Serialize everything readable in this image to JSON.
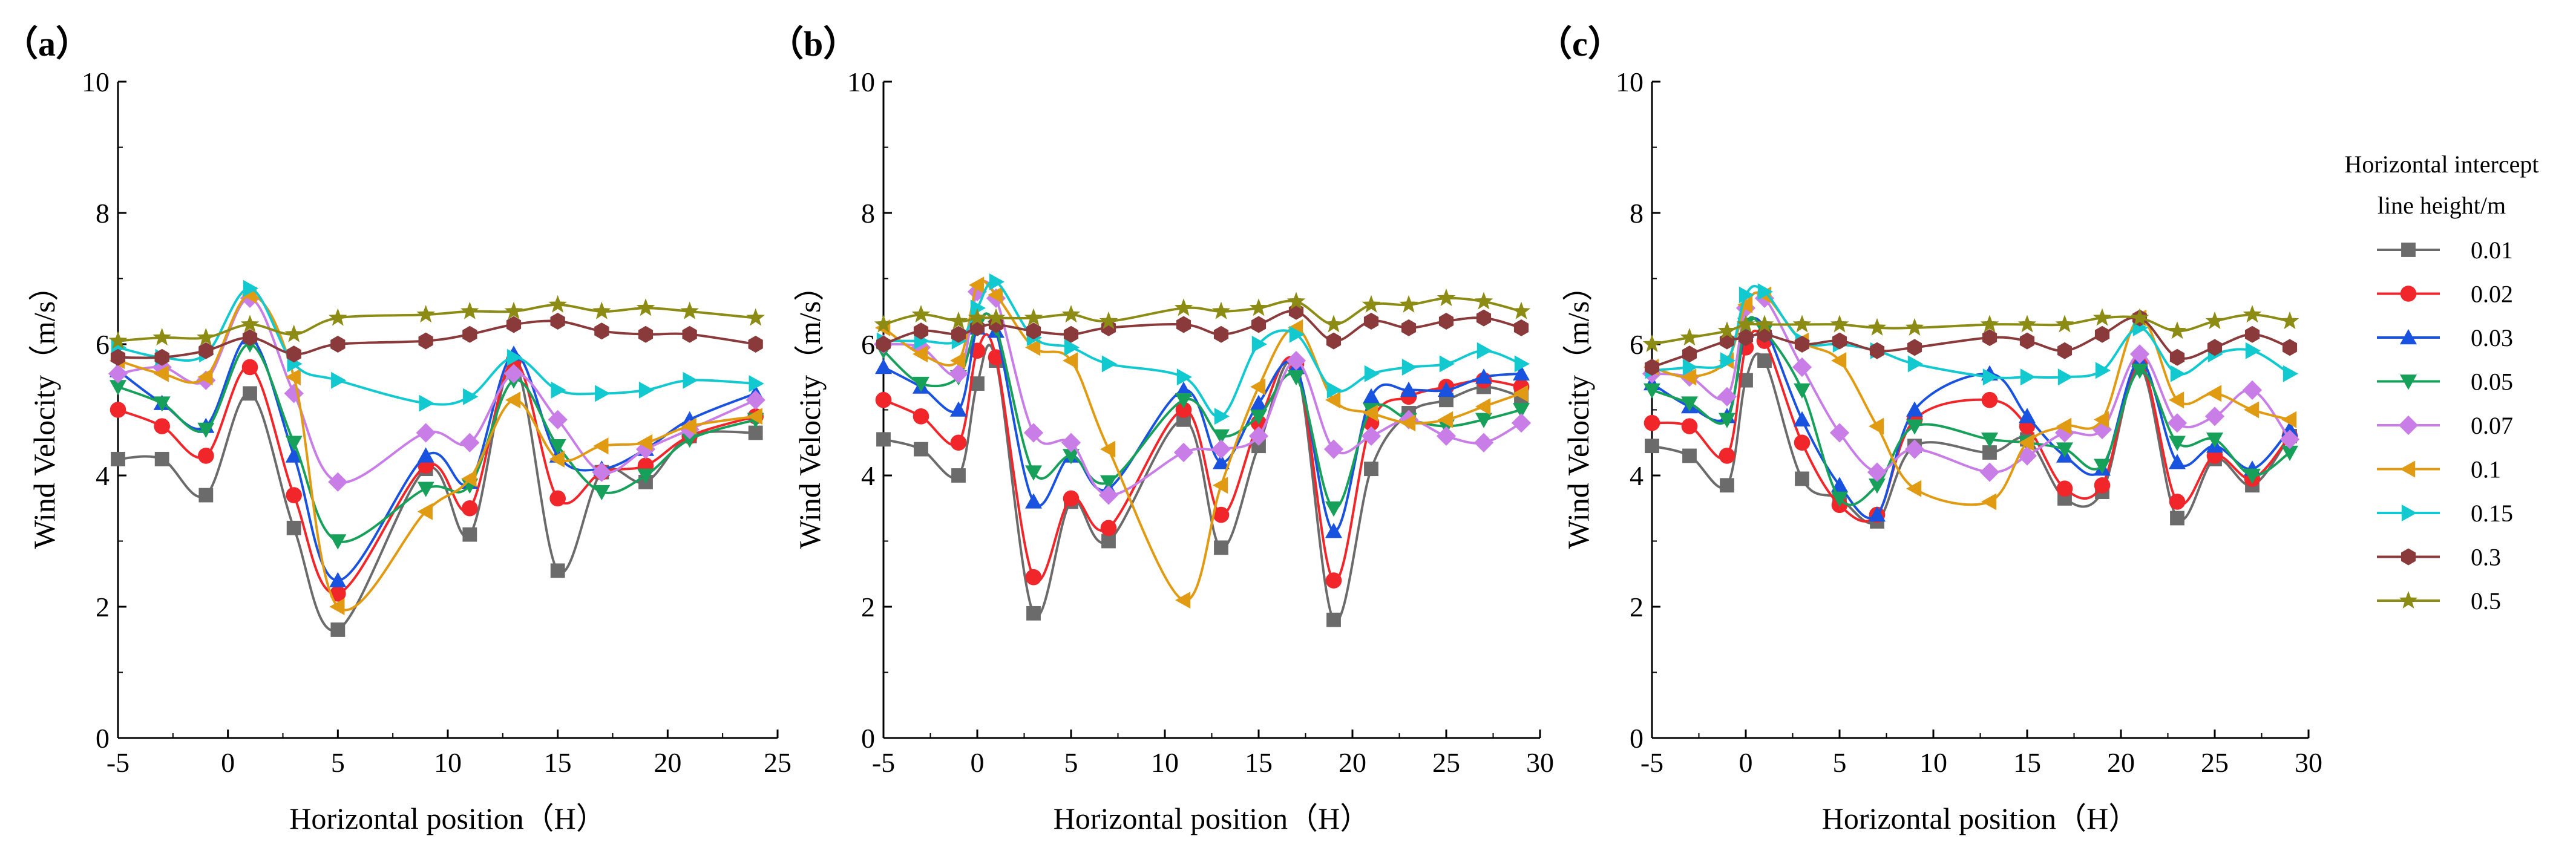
{
  "chart_data": {
    "type": "line",
    "ylabel": "Wind Velocity（m/s）",
    "xlabel": "Horizontal position（H）",
    "ylim": [
      0,
      10
    ],
    "yticks": [
      0,
      2,
      4,
      6,
      8,
      10
    ],
    "legend": {
      "title_line1": "Horizontal intercept",
      "title_line2": "line height/m",
      "placement": "right"
    },
    "series_styles": [
      {
        "name": "0.01",
        "color": "#6b6b6b",
        "marker": "square"
      },
      {
        "name": "0.02",
        "color": "#f0262a",
        "marker": "circle"
      },
      {
        "name": "0.03",
        "color": "#1a52e0",
        "marker": "triangle-up"
      },
      {
        "name": "0.05",
        "color": "#16a05a",
        "marker": "triangle-down"
      },
      {
        "name": "0.07",
        "color": "#c87ee6",
        "marker": "diamond"
      },
      {
        "name": "0.1",
        "color": "#e19b12",
        "marker": "triangle-left"
      },
      {
        "name": "0.15",
        "color": "#11c9cf",
        "marker": "triangle-right"
      },
      {
        "name": "0.3",
        "color": "#8a3a3a",
        "marker": "hexagon"
      },
      {
        "name": "0.5",
        "color": "#8c8b14",
        "marker": "star"
      }
    ],
    "panels": [
      {
        "label": "（a）",
        "xlim": [
          -5,
          25
        ],
        "xticks": [
          -5,
          0,
          5,
          10,
          15,
          20,
          25
        ],
        "x": [
          -5,
          -3,
          -1,
          1,
          3,
          5,
          9,
          11,
          13,
          15,
          17,
          19,
          21,
          24
        ],
        "series": [
          {
            "name": "0.01",
            "values": [
              4.25,
              4.25,
              3.7,
              5.25,
              3.2,
              1.65,
              4.1,
              3.1,
              5.7,
              2.55,
              4.05,
              3.9,
              4.6,
              4.65
            ]
          },
          {
            "name": "0.02",
            "values": [
              5.0,
              4.75,
              4.3,
              5.65,
              3.7,
              2.2,
              4.15,
              3.5,
              5.75,
              3.65,
              4.05,
              4.15,
              4.6,
              4.9
            ]
          },
          {
            "name": "0.03",
            "values": [
              5.6,
              5.1,
              4.75,
              6.1,
              4.3,
              2.4,
              4.3,
              3.9,
              5.85,
              4.3,
              4.1,
              4.4,
              4.85,
              5.25
            ]
          },
          {
            "name": "0.05",
            "values": [
              5.35,
              5.1,
              4.7,
              6.0,
              4.5,
              3.0,
              3.8,
              3.85,
              5.45,
              4.45,
              3.75,
              4.0,
              4.55,
              4.85
            ]
          },
          {
            "name": "0.07",
            "values": [
              5.55,
              5.65,
              5.45,
              6.7,
              5.25,
              3.9,
              4.65,
              4.5,
              5.55,
              4.85,
              4.05,
              4.4,
              4.7,
              5.15
            ]
          },
          {
            "name": "0.1",
            "values": [
              5.75,
              5.55,
              5.5,
              6.75,
              5.5,
              2.0,
              3.45,
              3.95,
              5.15,
              4.25,
              4.45,
              4.5,
              4.75,
              4.9
            ]
          },
          {
            "name": "0.15",
            "values": [
              5.95,
              5.8,
              5.85,
              6.85,
              5.7,
              5.45,
              5.1,
              5.2,
              5.8,
              5.3,
              5.25,
              5.3,
              5.45,
              5.4
            ]
          },
          {
            "name": "0.3",
            "values": [
              5.8,
              5.8,
              5.9,
              6.1,
              5.85,
              6.0,
              6.05,
              6.15,
              6.3,
              6.35,
              6.2,
              6.15,
              6.15,
              6.0
            ]
          },
          {
            "name": "0.5",
            "values": [
              6.05,
              6.1,
              6.1,
              6.3,
              6.15,
              6.4,
              6.45,
              6.5,
              6.5,
              6.6,
              6.5,
              6.55,
              6.5,
              6.4
            ]
          }
        ]
      },
      {
        "label": "（b）",
        "xlim": [
          -5,
          30
        ],
        "xticks": [
          -5,
          0,
          5,
          10,
          15,
          20,
          25,
          30
        ],
        "x": [
          -5,
          -3,
          -1,
          0,
          1,
          3,
          5,
          7,
          11,
          13,
          15,
          17,
          19,
          21,
          23,
          25,
          27,
          29
        ],
        "series": [
          {
            "name": "0.01",
            "values": [
              4.55,
              4.4,
              4.0,
              5.4,
              5.75,
              1.9,
              3.6,
              3.0,
              4.85,
              2.9,
              4.45,
              5.65,
              1.8,
              4.1,
              4.95,
              5.15,
              5.35,
              5.2
            ]
          },
          {
            "name": "0.02",
            "values": [
              5.15,
              4.9,
              4.5,
              5.9,
              5.8,
              2.45,
              3.65,
              3.2,
              5.0,
              3.4,
              4.8,
              5.7,
              2.4,
              4.8,
              5.2,
              5.35,
              5.45,
              5.35
            ]
          },
          {
            "name": "0.03",
            "values": [
              5.65,
              5.35,
              5.0,
              6.25,
              6.2,
              3.6,
              4.3,
              3.8,
              5.3,
              4.2,
              5.1,
              5.65,
              3.15,
              5.2,
              5.3,
              5.3,
              5.5,
              5.55
            ]
          },
          {
            "name": "0.05",
            "values": [
              5.9,
              5.4,
              5.5,
              6.3,
              6.25,
              4.05,
              4.3,
              3.9,
              5.15,
              4.6,
              4.9,
              5.5,
              3.5,
              5.0,
              4.85,
              4.75,
              4.85,
              5.0
            ]
          },
          {
            "name": "0.07",
            "values": [
              6.0,
              5.95,
              5.55,
              6.8,
              6.7,
              4.65,
              4.5,
              3.7,
              4.35,
              4.4,
              4.6,
              5.75,
              4.4,
              4.6,
              4.85,
              4.6,
              4.5,
              4.8
            ]
          },
          {
            "name": "0.1",
            "values": [
              6.25,
              5.85,
              5.75,
              6.9,
              6.75,
              5.95,
              5.75,
              4.4,
              2.1,
              3.85,
              5.35,
              6.25,
              5.15,
              4.95,
              4.8,
              4.85,
              5.05,
              5.25
            ]
          },
          {
            "name": "0.15",
            "values": [
              6.05,
              6.05,
              6.05,
              6.55,
              6.95,
              6.1,
              5.95,
              5.7,
              5.5,
              4.9,
              6.0,
              6.15,
              5.3,
              5.55,
              5.65,
              5.7,
              5.9,
              5.7
            ]
          },
          {
            "name": "0.3",
            "values": [
              6.0,
              6.2,
              6.15,
              6.25,
              6.3,
              6.2,
              6.15,
              6.25,
              6.3,
              6.15,
              6.3,
              6.5,
              6.05,
              6.35,
              6.25,
              6.35,
              6.4,
              6.25
            ]
          },
          {
            "name": "0.5",
            "values": [
              6.3,
              6.45,
              6.35,
              6.4,
              6.4,
              6.4,
              6.45,
              6.35,
              6.55,
              6.5,
              6.55,
              6.65,
              6.3,
              6.6,
              6.6,
              6.7,
              6.65,
              6.5
            ]
          }
        ]
      },
      {
        "label": "（c）",
        "xlim": [
          -5,
          30
        ],
        "xticks": [
          -5,
          0,
          5,
          10,
          15,
          20,
          25,
          30
        ],
        "x": [
          -5,
          -3,
          -1,
          0,
          1,
          3,
          5,
          7,
          9,
          13,
          15,
          17,
          19,
          21,
          23,
          25,
          27,
          29
        ],
        "series": [
          {
            "name": "0.01",
            "values": [
              4.45,
              4.3,
              3.85,
              5.45,
              5.75,
              3.95,
              3.65,
              3.3,
              4.45,
              4.35,
              4.55,
              3.65,
              3.75,
              5.65,
              3.35,
              4.25,
              3.85,
              4.6
            ]
          },
          {
            "name": "0.02",
            "values": [
              4.8,
              4.75,
              4.3,
              5.95,
              6.05,
              4.5,
              3.55,
              3.4,
              4.85,
              5.15,
              4.75,
              3.8,
              3.85,
              5.7,
              3.6,
              4.3,
              3.95,
              4.6
            ]
          },
          {
            "name": "0.03",
            "values": [
              5.4,
              5.05,
              4.9,
              6.2,
              6.25,
              4.85,
              3.85,
              3.4,
              5.0,
              5.55,
              4.9,
              4.3,
              4.1,
              5.75,
              4.2,
              4.45,
              4.1,
              4.7
            ]
          },
          {
            "name": "0.05",
            "values": [
              5.3,
              5.1,
              4.85,
              6.3,
              6.2,
              5.3,
              3.65,
              3.85,
              4.75,
              4.55,
              4.5,
              4.4,
              4.15,
              5.6,
              4.5,
              4.55,
              4.0,
              4.35
            ]
          },
          {
            "name": "0.07",
            "values": [
              5.55,
              5.5,
              5.2,
              6.55,
              6.7,
              5.65,
              4.65,
              4.05,
              4.4,
              4.05,
              4.3,
              4.65,
              4.7,
              5.85,
              4.8,
              4.9,
              5.3,
              4.55
            ]
          },
          {
            "name": "0.1",
            "values": [
              5.65,
              5.5,
              5.75,
              6.6,
              6.75,
              6.05,
              5.75,
              4.75,
              3.8,
              3.6,
              4.5,
              4.75,
              4.85,
              6.4,
              5.15,
              5.25,
              5.0,
              4.85
            ]
          },
          {
            "name": "0.15",
            "values": [
              5.6,
              5.65,
              5.75,
              6.75,
              6.8,
              6.05,
              6.0,
              5.9,
              5.7,
              5.5,
              5.5,
              5.5,
              5.6,
              6.25,
              5.55,
              5.85,
              5.9,
              5.55
            ]
          },
          {
            "name": "0.3",
            "values": [
              5.65,
              5.85,
              6.05,
              6.1,
              6.15,
              6.0,
              6.05,
              5.9,
              5.95,
              6.1,
              6.05,
              5.9,
              6.15,
              6.4,
              5.8,
              5.95,
              6.15,
              5.95
            ]
          },
          {
            "name": "0.5",
            "values": [
              6.0,
              6.1,
              6.2,
              6.3,
              6.3,
              6.3,
              6.3,
              6.25,
              6.25,
              6.3,
              6.3,
              6.3,
              6.4,
              6.4,
              6.2,
              6.35,
              6.45,
              6.35
            ]
          }
        ]
      }
    ]
  }
}
